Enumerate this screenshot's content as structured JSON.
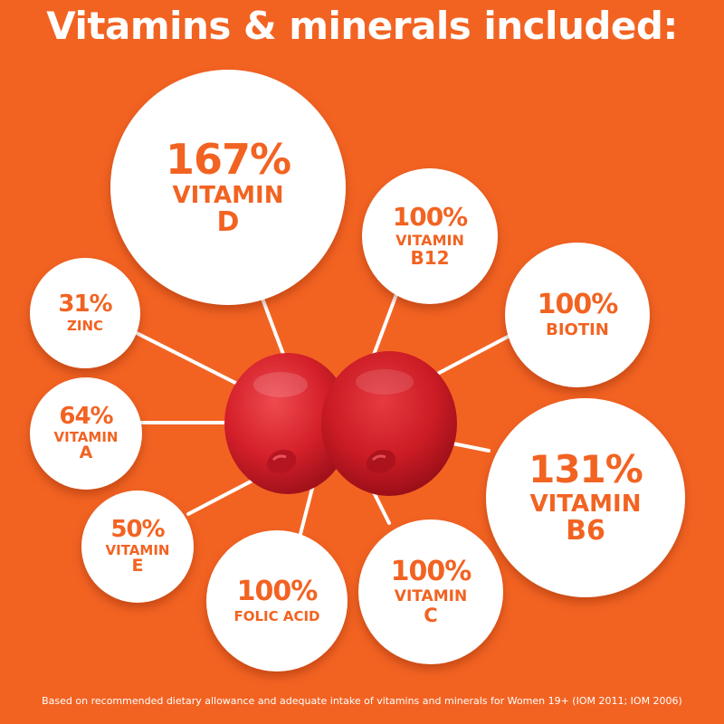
{
  "title": "Vitamins & minerals included:",
  "nutrients": {
    "vitamin_d": {
      "percent": "167%",
      "name_line1": "VITAMIN",
      "name_line2": "D"
    },
    "vitamin_b12": {
      "percent": "100%",
      "name_line1": "VITAMIN",
      "name_line2": "B12"
    },
    "biotin": {
      "percent": "100%",
      "name_line1": "BIOTIN"
    },
    "vitamin_b6": {
      "percent": "131%",
      "name_line1": "VITAMIN",
      "name_line2": "B6"
    },
    "vitamin_c": {
      "percent": "100%",
      "name_line1": "VITAMIN",
      "name_line2": "C"
    },
    "folic_acid": {
      "percent": "100%",
      "name_line1": "FOLIC ACID"
    },
    "vitamin_e": {
      "percent": "50%",
      "name_line1": "VITAMIN",
      "name_line2": "E"
    },
    "vitamin_a": {
      "percent": "64%",
      "name_line1": "VITAMIN",
      "name_line2": "A"
    },
    "zinc": {
      "percent": "31%",
      "name_line1": "ZINC"
    }
  },
  "footnote": "Based on recommended dietary allowance and adequate intake of vitamins and minerals for Women 19+ (IOM 2011; IOM 2006)",
  "colors": {
    "background": "#f26322",
    "bubble": "#ffffff",
    "text_accent": "#f26322",
    "gummy": "#d9202a"
  }
}
